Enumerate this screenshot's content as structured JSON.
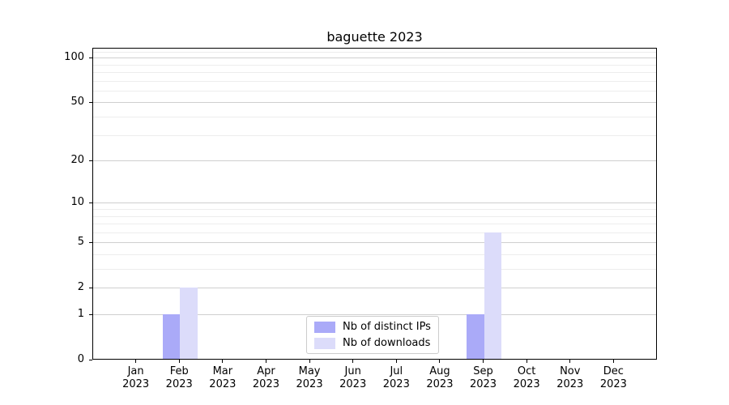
{
  "chart_data": {
    "type": "bar",
    "title": "baguette 2023",
    "categories": [
      {
        "line1": "Jan",
        "line2": "2023"
      },
      {
        "line1": "Feb",
        "line2": "2023"
      },
      {
        "line1": "Mar",
        "line2": "2023"
      },
      {
        "line1": "Apr",
        "line2": "2023"
      },
      {
        "line1": "May",
        "line2": "2023"
      },
      {
        "line1": "Jun",
        "line2": "2023"
      },
      {
        "line1": "Jul",
        "line2": "2023"
      },
      {
        "line1": "Aug",
        "line2": "2023"
      },
      {
        "line1": "Sep",
        "line2": "2023"
      },
      {
        "line1": "Oct",
        "line2": "2023"
      },
      {
        "line1": "Nov",
        "line2": "2023"
      },
      {
        "line1": "Dec",
        "line2": "2023"
      }
    ],
    "series": [
      {
        "name": "Nb of distinct IPs",
        "color": "#aaaaf8",
        "values": [
          0,
          1,
          0,
          0,
          0,
          0,
          0,
          0,
          1,
          0,
          0,
          0
        ]
      },
      {
        "name": "Nb of downloads",
        "color": "#dcdcfa",
        "values": [
          0,
          2,
          0,
          0,
          0,
          0,
          0,
          0,
          6,
          0,
          0,
          0
        ]
      }
    ],
    "yscale": "log1p",
    "ylim": [
      0,
      116.5
    ],
    "yticks": [
      0,
      1,
      2,
      5,
      10,
      20,
      50,
      100
    ],
    "yticks_minor": [
      3,
      4,
      6,
      7,
      8,
      9,
      30,
      40,
      60,
      70,
      80,
      90,
      110
    ],
    "xlabel": "",
    "ylabel": "",
    "grid": "horizontal",
    "legend_position": "lower center"
  }
}
